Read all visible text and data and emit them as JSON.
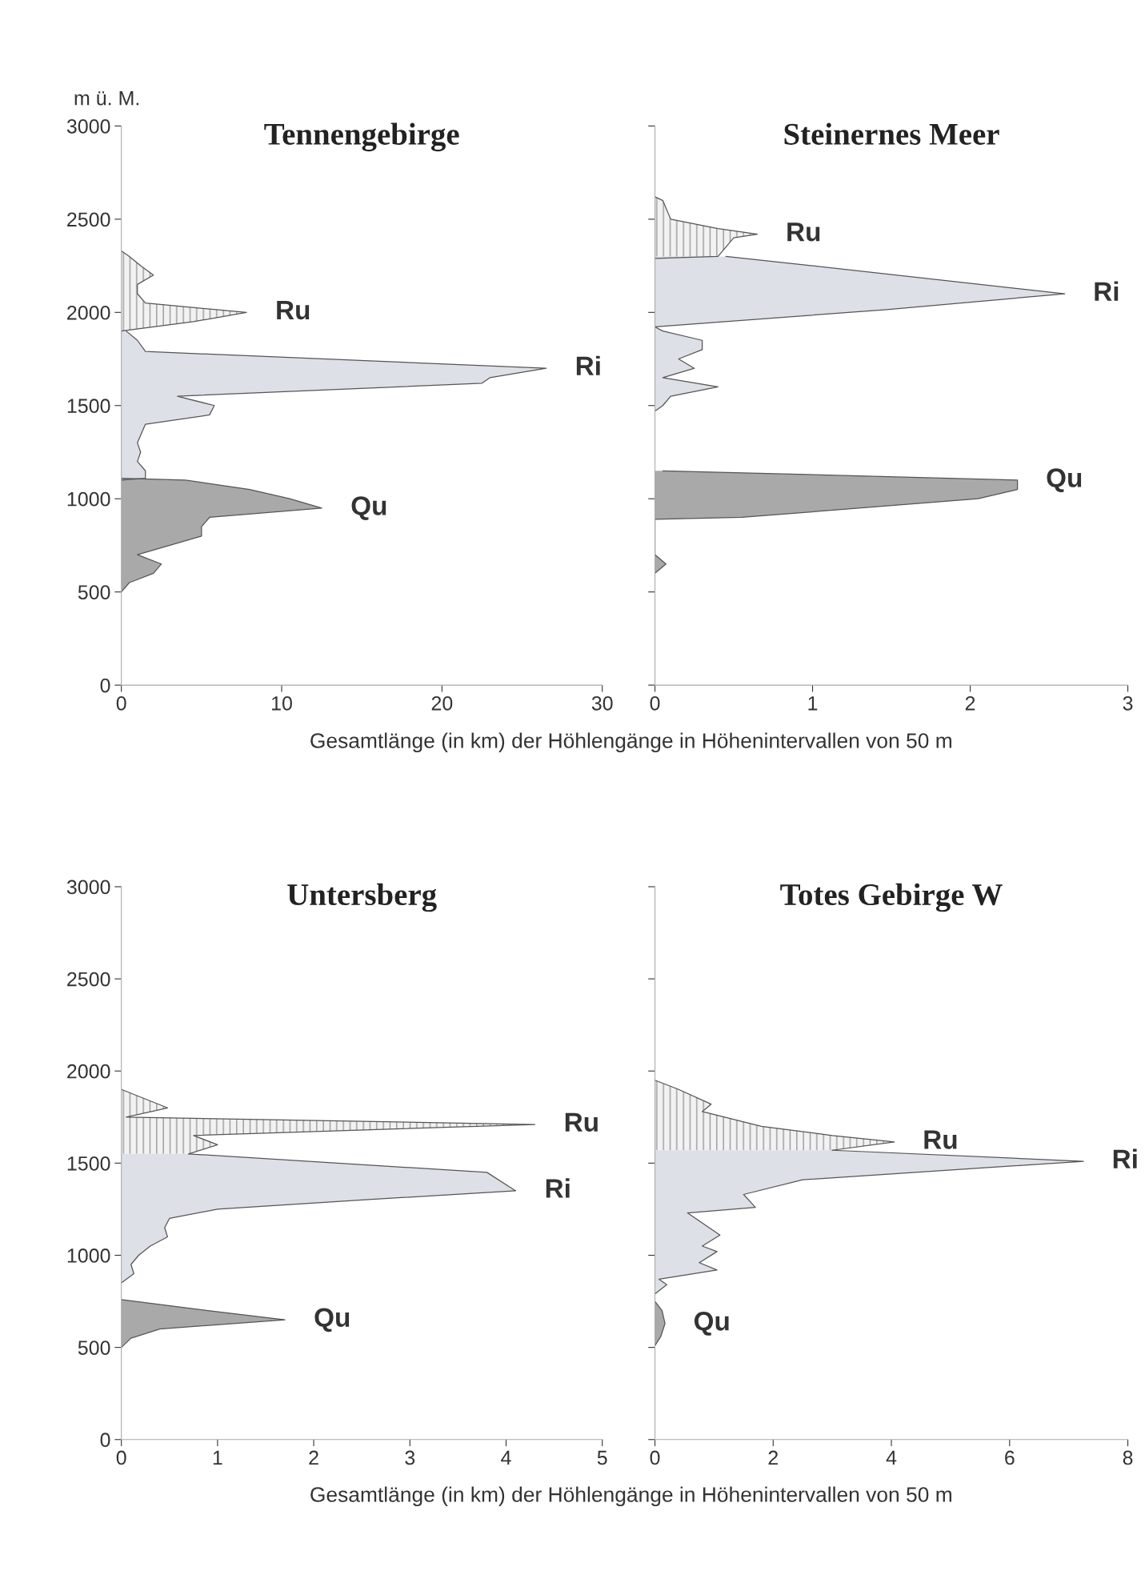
{
  "chart_data": [
    {
      "type": "area",
      "orientation": "horizontal",
      "title": "Tennengebirge",
      "ylabel": "m ü. M.",
      "xlabel": "Gesamtlänge (in km) der Höhlengänge in Höhenintervallen von 50 m",
      "xlim": [
        0,
        30
      ],
      "xticks": [
        0,
        10,
        20,
        30
      ],
      "ylim": [
        0,
        3000
      ],
      "yticks": [
        0,
        500,
        1000,
        1500,
        2000,
        2500,
        3000
      ],
      "grid": false,
      "legend": false,
      "series": [
        {
          "name": "Ru",
          "color": "#f2f2f2",
          "x": [
            2330,
            2300,
            2250,
            2200,
            2150,
            2100,
            2050,
            2000,
            1950,
            1900
          ],
          "values": [
            0,
            0.5,
            1.2,
            2.0,
            1.0,
            1.0,
            1.5,
            7.8,
            4.5,
            0
          ]
        },
        {
          "name": "Ri",
          "color": "#dde0e6",
          "x": [
            1900,
            1850,
            1790,
            1700,
            1650,
            1620,
            1550,
            1500,
            1450,
            1400,
            1300,
            1250,
            1200,
            1150,
            1110,
            1100
          ],
          "values": [
            0.3,
            1.0,
            1.5,
            26.5,
            23,
            22.5,
            3.5,
            5.8,
            5.5,
            1.5,
            1,
            1.2,
            1,
            1.5,
            1.5,
            0
          ]
        },
        {
          "name": "Qu",
          "color": "#a9a9a9",
          "x": [
            1110,
            1100,
            1050,
            1000,
            950,
            900,
            850,
            800,
            700,
            650,
            600,
            550,
            500
          ],
          "values": [
            0,
            4,
            8,
            10.5,
            12.5,
            5.5,
            5,
            5,
            1,
            2.5,
            2,
            0.5,
            0
          ]
        }
      ]
    },
    {
      "type": "area",
      "orientation": "horizontal",
      "title": "Steinernes Meer",
      "xlim": [
        0,
        3
      ],
      "xticks": [
        0,
        1,
        2,
        3
      ],
      "ylim": [
        0,
        3000
      ],
      "yticks": [
        0,
        500,
        1000,
        1500,
        2000,
        2500,
        3000
      ],
      "tick_labels": "x",
      "grid": false,
      "legend": false,
      "series": [
        {
          "name": "Ru",
          "color": "#f2f2f2",
          "x": [
            2620,
            2600,
            2500,
            2450,
            2420,
            2400,
            2300,
            2290
          ],
          "values": [
            0,
            0.05,
            0.1,
            0.4,
            0.65,
            0.5,
            0.4,
            0
          ]
        },
        {
          "name": "Ri",
          "color": "#dde0e6",
          "x": [
            2300,
            2250,
            2100,
            2015,
            1922,
            1900,
            1850,
            1800,
            1750,
            1700,
            1650,
            1600,
            1550,
            1500,
            1470
          ],
          "values": [
            0.45,
            1.0,
            2.6,
            1.47,
            0,
            0.05,
            0.3,
            0.3,
            0.15,
            0.25,
            0.05,
            0.4,
            0.1,
            0.05,
            0
          ]
        },
        {
          "name": "Qu",
          "color": "#a9a9a9",
          "x": [
            1150,
            1100,
            1050,
            1000,
            900,
            890,
            700,
            650,
            600
          ],
          "values": [
            0.05,
            2.3,
            2.3,
            2.05,
            0.55,
            0,
            0,
            0.07,
            0
          ]
        }
      ]
    },
    {
      "type": "area",
      "orientation": "horizontal",
      "title": "Untersberg",
      "xlabel": "Gesamtlänge (in km) der Höhlengänge in Höhenintervallen von 50 m",
      "xlim": [
        0,
        5
      ],
      "xticks": [
        0,
        1,
        2,
        3,
        4,
        5
      ],
      "ylim": [
        0,
        3000
      ],
      "yticks": [
        0,
        500,
        1000,
        1500,
        2000,
        2500,
        3000
      ],
      "grid": false,
      "legend": false,
      "series": [
        {
          "name": "Ru",
          "color": "#f2f2f2",
          "x": [
            1900,
            1800,
            1750,
            1710,
            1650,
            1600,
            1550
          ],
          "values": [
            0,
            0.48,
            0.05,
            4.3,
            0.75,
            1.0,
            0.7
          ]
        },
        {
          "name": "Ri",
          "color": "#dde0e6",
          "x": [
            1550,
            1450,
            1350,
            1300,
            1250,
            1200,
            1150,
            1100,
            1050,
            1000,
            950,
            900,
            850
          ],
          "values": [
            0.7,
            3.8,
            4.1,
            2.5,
            1.0,
            0.5,
            0.45,
            0.48,
            0.3,
            0.18,
            0.1,
            0.13,
            0
          ]
        },
        {
          "name": "Qu",
          "color": "#a9a9a9",
          "x": [
            760,
            700,
            650,
            600,
            550,
            500
          ],
          "values": [
            0,
            0.9,
            1.7,
            0.4,
            0.1,
            0
          ]
        }
      ]
    },
    {
      "type": "area",
      "orientation": "horizontal",
      "title": "Totes Gebirge W",
      "xlim": [
        0,
        8
      ],
      "xticks": [
        0,
        2,
        4,
        6,
        8
      ],
      "ylim": [
        0,
        3000
      ],
      "yticks": [
        0,
        500,
        1000,
        1500,
        2000,
        2500,
        3000
      ],
      "tick_labels": "x",
      "grid": false,
      "legend": false,
      "series": [
        {
          "name": "Ru",
          "color": "#f2f2f2",
          "x": [
            1950,
            1900,
            1820,
            1780,
            1700,
            1650,
            1615,
            1570
          ],
          "values": [
            0,
            0.4,
            0.95,
            0.8,
            1.8,
            3.0,
            4.05,
            3.0
          ]
        },
        {
          "name": "Ri",
          "color": "#dde0e6",
          "x": [
            1570,
            1510,
            1410,
            1330,
            1260,
            1230,
            1110,
            1050,
            1020,
            960,
            920,
            870,
            840,
            790
          ],
          "values": [
            3.0,
            7.25,
            2.5,
            1.5,
            1.7,
            0.55,
            1.1,
            0.8,
            1.05,
            0.75,
            1.05,
            0.07,
            0.2,
            0
          ]
        },
        {
          "name": "Qu",
          "color": "#a9a9a9",
          "x": [
            750,
            700,
            630,
            560,
            510
          ],
          "values": [
            0,
            0.12,
            0.17,
            0.1,
            0
          ]
        }
      ]
    }
  ]
}
